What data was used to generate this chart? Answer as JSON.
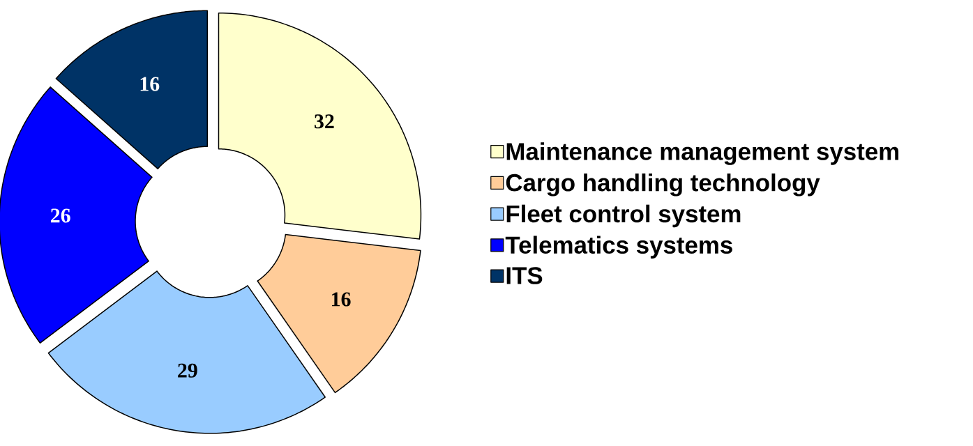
{
  "chart_data": {
    "type": "donut",
    "categories": [
      "Maintenance management system",
      "Cargo handling technology",
      "Fleet control system",
      "Telematics systems",
      "ITS"
    ],
    "values": [
      32,
      16,
      29,
      26,
      16
    ],
    "colors": [
      "#ffffcc",
      "#ffcc99",
      "#99ccff",
      "#0000ff",
      "#003366"
    ],
    "data_labels": true,
    "legend": "right"
  }
}
